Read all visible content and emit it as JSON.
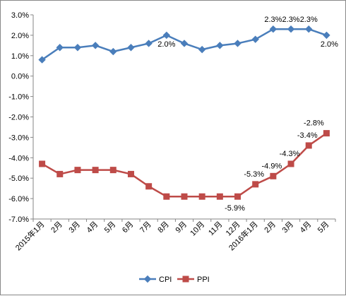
{
  "chart_data": {
    "type": "line",
    "categories": [
      "2015年1月",
      "2月",
      "3月",
      "4月",
      "5月",
      "6月",
      "7月",
      "8月",
      "9月",
      "10月",
      "11月",
      "12月",
      "2016年1月",
      "2月",
      "3月",
      "4月",
      "5月"
    ],
    "series": [
      {
        "name": "CPI",
        "color": "#4a7ebb",
        "marker": "diamond",
        "values": [
          0.8,
          1.4,
          1.4,
          1.5,
          1.2,
          1.4,
          1.6,
          2.0,
          1.6,
          1.3,
          1.5,
          1.6,
          1.8,
          2.3,
          2.3,
          2.3,
          2.0
        ],
        "data_labels": [
          {
            "index": 7,
            "text": "2.0%"
          },
          {
            "index": 13,
            "text": "2.3%"
          },
          {
            "index": 14,
            "text": "2.3%"
          },
          {
            "index": 15,
            "text": "2.3%"
          },
          {
            "index": 16,
            "text": "2.0%"
          }
        ]
      },
      {
        "name": "PPI",
        "color": "#be4b48",
        "marker": "square",
        "values": [
          -4.3,
          -4.8,
          -4.6,
          -4.6,
          -4.6,
          -4.8,
          -5.4,
          -5.9,
          -5.9,
          -5.9,
          -5.9,
          -5.9,
          -5.3,
          -4.9,
          -4.3,
          -3.4,
          -2.8
        ],
        "data_labels": [
          {
            "index": 11,
            "text": "-5.9%"
          },
          {
            "index": 12,
            "text": "-5.3%"
          },
          {
            "index": 13,
            "text": "-4.9%"
          },
          {
            "index": 14,
            "text": "-4.3%"
          },
          {
            "index": 15,
            "text": "-3.4%"
          },
          {
            "index": 16,
            "text": "-2.8%"
          }
        ]
      }
    ],
    "y_ticks": [
      "3.0%",
      "2.0%",
      "1.0%",
      "0.0%",
      "-1.0%",
      "-2.0%",
      "-3.0%",
      "-4.0%",
      "-5.0%",
      "-6.0%",
      "-7.0%"
    ],
    "ylim": [
      -7.0,
      3.0
    ],
    "y_step": 1.0,
    "grid": false,
    "legend_position": "bottom"
  }
}
